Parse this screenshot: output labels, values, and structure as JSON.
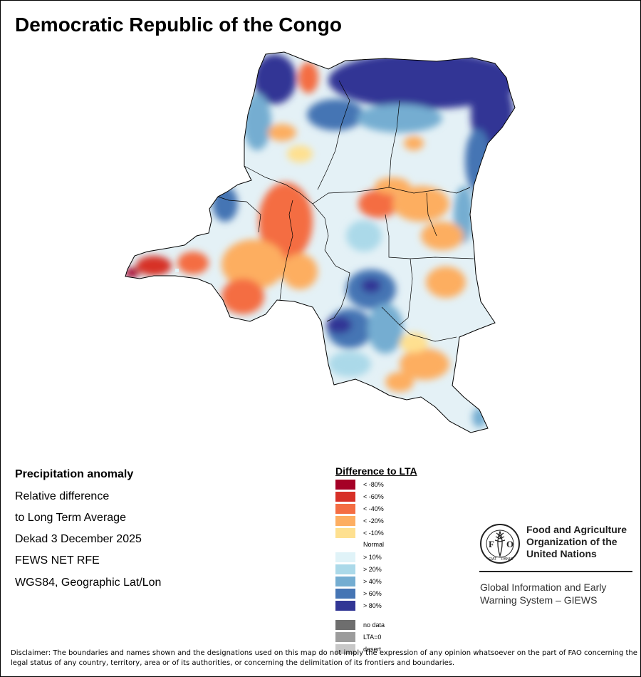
{
  "title": "Democratic Republic of the Congo",
  "info": {
    "heading": "Precipitation anomaly",
    "lines": [
      "Relative difference",
      "to Long Term Average",
      "Dekad 3 December 2025",
      "FEWS NET RFE",
      "WGS84, Geographic Lat/Lon"
    ]
  },
  "legend": {
    "title": "Difference to LTA",
    "classes": [
      {
        "label": "< -80%",
        "color": "#a50026"
      },
      {
        "label": "< -60%",
        "color": "#d73027"
      },
      {
        "label": "< -40%",
        "color": "#f46d43"
      },
      {
        "label": "< -20%",
        "color": "#fdae61"
      },
      {
        "label": "< -10%",
        "color": "#fee090"
      },
      {
        "label": "Normal",
        "color": "#ffffff"
      },
      {
        "label": "> 10%",
        "color": "#e0f3f8"
      },
      {
        "label": "> 20%",
        "color": "#abd9e9"
      },
      {
        "label": "> 40%",
        "color": "#74add1"
      },
      {
        "label": "> 60%",
        "color": "#4575b4"
      },
      {
        "label": "> 80%",
        "color": "#313695"
      }
    ],
    "extra": [
      {
        "label": "no data",
        "color": "#6e6e6e"
      },
      {
        "label": "LTA=0",
        "color": "#9c9c9c"
      },
      {
        "label": "desert",
        "color": "#c8c8c8"
      }
    ]
  },
  "fao": {
    "name_lines": [
      "Food and Agriculture",
      "Organization of the",
      "United Nations"
    ],
    "giews_lines": [
      "Global Information and Early",
      "Warning System – GIEWS"
    ],
    "logo_ring_text": "FIAT PANIS",
    "logo_letters": "FAO"
  },
  "disclaimer": "Disclaimer: The boundaries and names shown and the designations used on this map do not imply the expression of any opinion whatsoever on the part of FAO concerning the legal status of any country, territory, area or of its authorities, or concerning the delimitation of its frontiers and boundaries."
}
